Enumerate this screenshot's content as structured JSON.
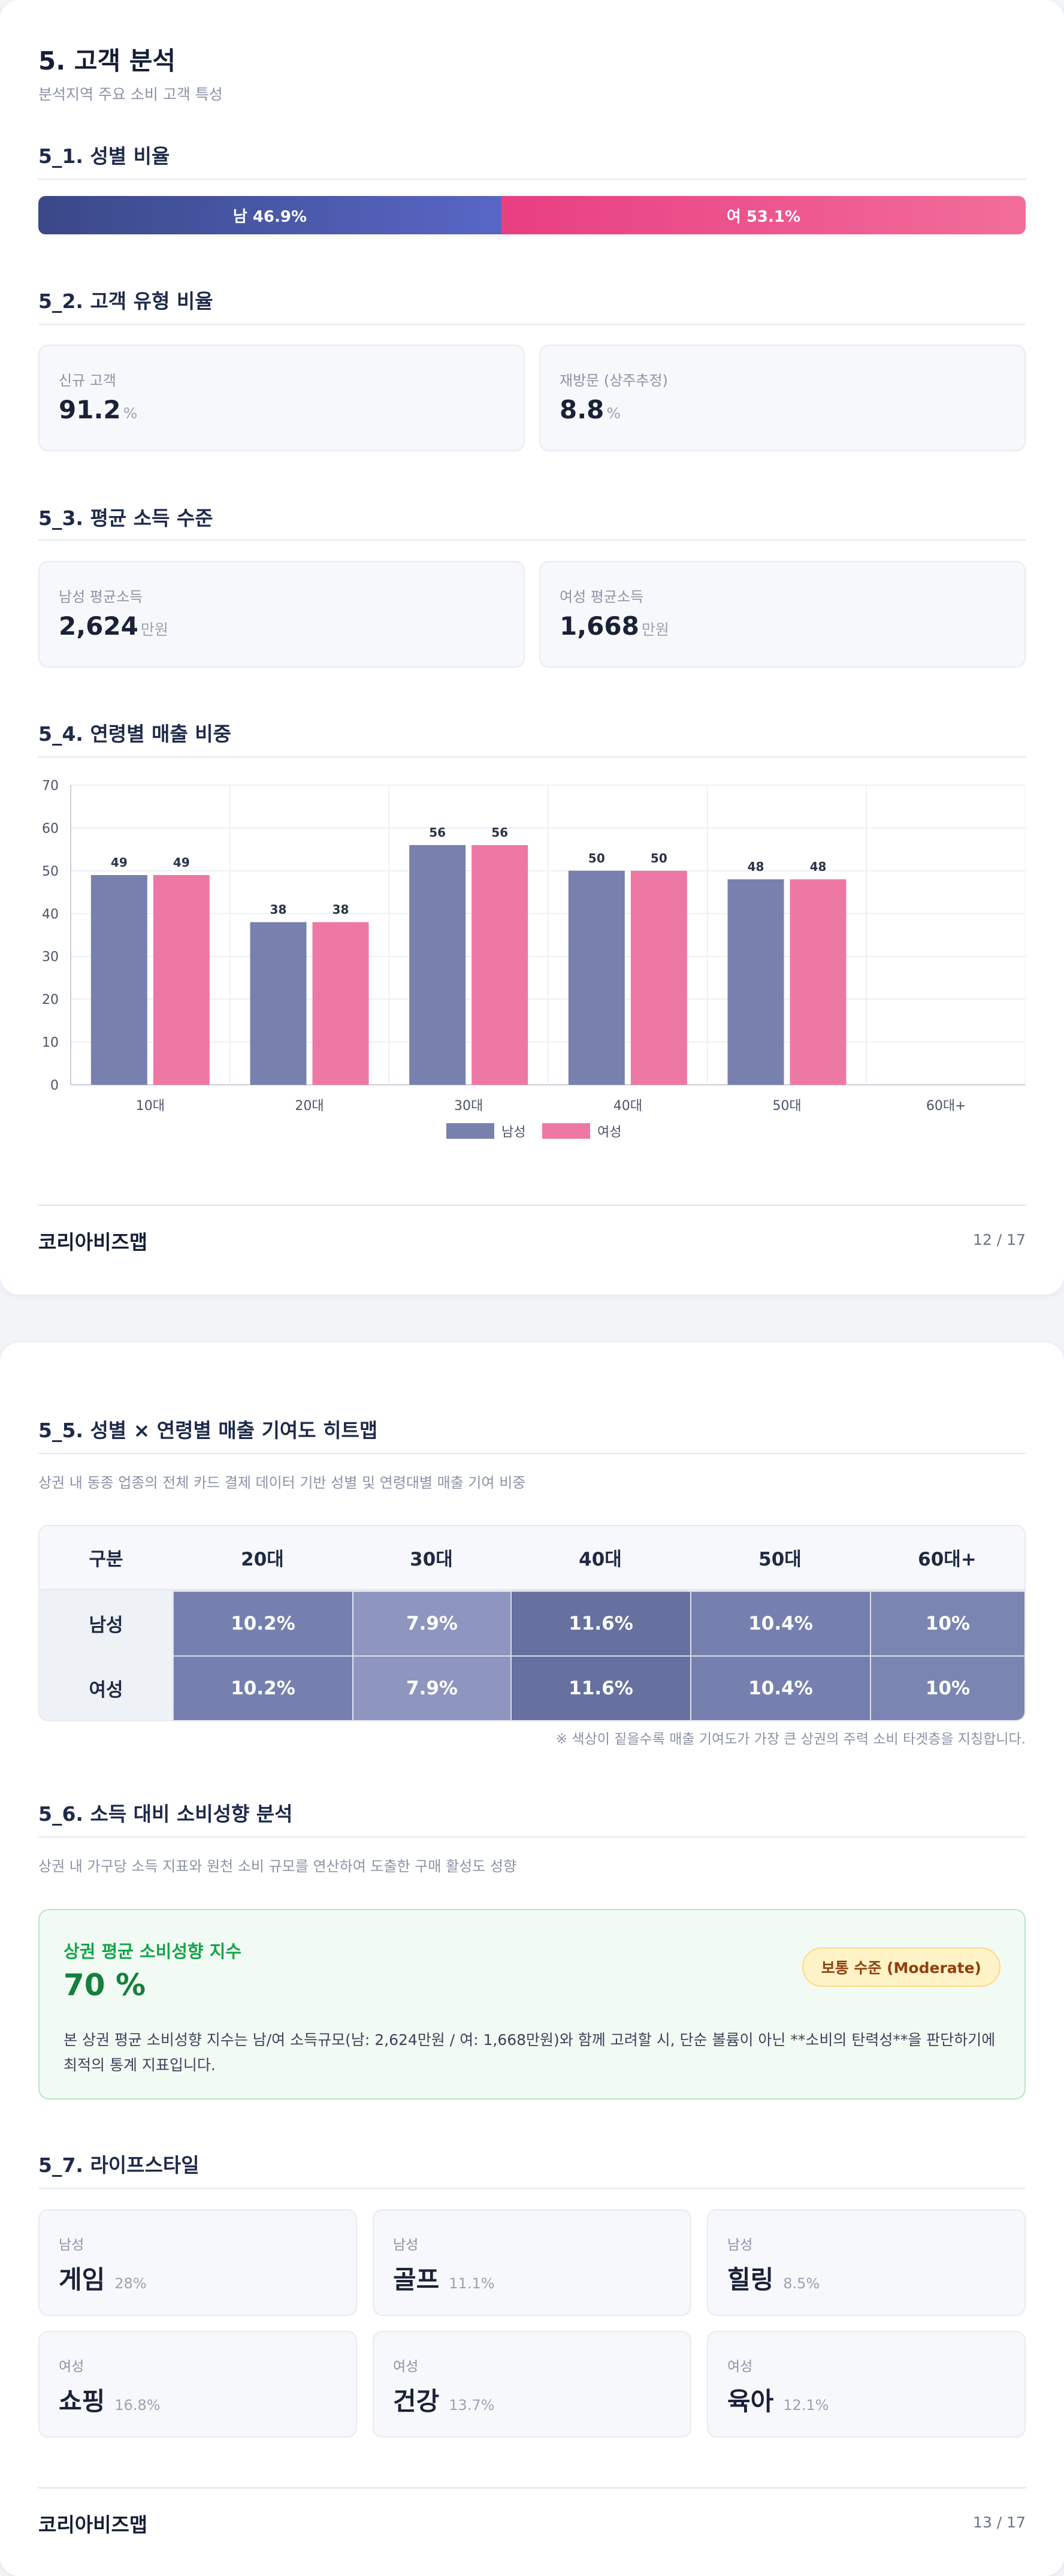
{
  "page1": {
    "title": "5. 고객 분석",
    "subtitle": "분석지역 주요 소비 고객 특성",
    "gender": {
      "heading": "5_1. 성별 비율",
      "male_label": "남 46.9%",
      "female_label": "여 53.1%",
      "male_pct": 46.9,
      "female_pct": 53.1,
      "colors": {
        "male_start": "#3a4888",
        "male_end": "#5866c6",
        "female_start": "#e83e82",
        "female_end": "#f26d9a"
      }
    },
    "customer_type": {
      "heading": "5_2. 고객 유형 비율",
      "cards": [
        {
          "label": "신규 고객",
          "value": "91.2",
          "unit": "%"
        },
        {
          "label": "재방문 (상주추정)",
          "value": "8.8",
          "unit": "%"
        }
      ]
    },
    "income": {
      "heading": "5_3. 평균 소득 수준",
      "cards": [
        {
          "label": "남성 평균소득",
          "value": "2,624",
          "unit": "만원"
        },
        {
          "label": "여성 평균소득",
          "value": "1,668",
          "unit": "만원"
        }
      ]
    },
    "age_sales": {
      "heading": "5_4. 연령별 매출 비중"
    },
    "footer": {
      "brand": "코리아비즈맵",
      "page": "12 / 17"
    }
  },
  "chart_data": {
    "type": "bar",
    "categories": [
      "10대",
      "20대",
      "30대",
      "40대",
      "50대",
      "60대+"
    ],
    "series": [
      {
        "name": "남성",
        "values": [
          49,
          38,
          56,
          50,
          48,
          null
        ],
        "color": "#7880ae"
      },
      {
        "name": "여성",
        "values": [
          49,
          38,
          56,
          50,
          48,
          null
        ],
        "color": "#ee78a4"
      }
    ],
    "ylim": [
      0,
      70
    ],
    "yticks": [
      0,
      10,
      20,
      30,
      40,
      50,
      60,
      70
    ],
    "grid": true,
    "legend": "bottom-center"
  },
  "page2": {
    "heatmap": {
      "heading": "5_5. 성별 × 연령별 매출 기여도 히트맵",
      "desc": "상권 내 동종 업종의 전체 카드 결제 데이터 기반 성별 및 연령대별 매출 기여 비중",
      "header": [
        "구분",
        "20대",
        "30대",
        "40대",
        "50대",
        "60대+"
      ],
      "rows": [
        {
          "label": "남성",
          "cells": [
            "10.2%",
            "7.9%",
            "11.6%",
            "10.4%",
            "10%"
          ]
        },
        {
          "label": "여성",
          "cells": [
            "10.2%",
            "7.9%",
            "11.6%",
            "10.4%",
            "10%"
          ]
        }
      ],
      "cell_colors": [
        "#7680ae",
        "#8e96bf",
        "#66719f",
        "#7680ae",
        "#7b85b2"
      ],
      "note": "※ 색상이 짙을수록 매출 기여도가 가장 큰 상권의 주력 소비 타겟층을 지칭합니다."
    },
    "propensity": {
      "heading": "5_6. 소득 대비 소비성향 분석",
      "desc": "상권 내 가구당 소득 지표와 원천 소비 규모를 연산하여 도출한 구매 활성도 성향",
      "box_title": "상권 평균 소비성향 지수",
      "value": "70 %",
      "badge": "보통 수준 (Moderate)",
      "text": "본 상권 평균 소비성향 지수는 남/여 소득규모(남: 2,624만원 / 여: 1,668만원)와 함께 고려할 시, 단순 볼륨이 아닌 **소비의 탄력성**을 판단하기에 최적의 통계 지표입니다."
    },
    "lifestyle": {
      "heading": "5_7. 라이프스타일",
      "cards": [
        {
          "gender": "남성",
          "name": "게임",
          "pct": "28%"
        },
        {
          "gender": "남성",
          "name": "골프",
          "pct": "11.1%"
        },
        {
          "gender": "남성",
          "name": "힐링",
          "pct": "8.5%"
        },
        {
          "gender": "여성",
          "name": "쇼핑",
          "pct": "16.8%"
        },
        {
          "gender": "여성",
          "name": "건강",
          "pct": "13.7%"
        },
        {
          "gender": "여성",
          "name": "육아",
          "pct": "12.1%"
        }
      ]
    },
    "footer": {
      "brand": "코리아비즈맵",
      "page": "13 / 17"
    }
  }
}
